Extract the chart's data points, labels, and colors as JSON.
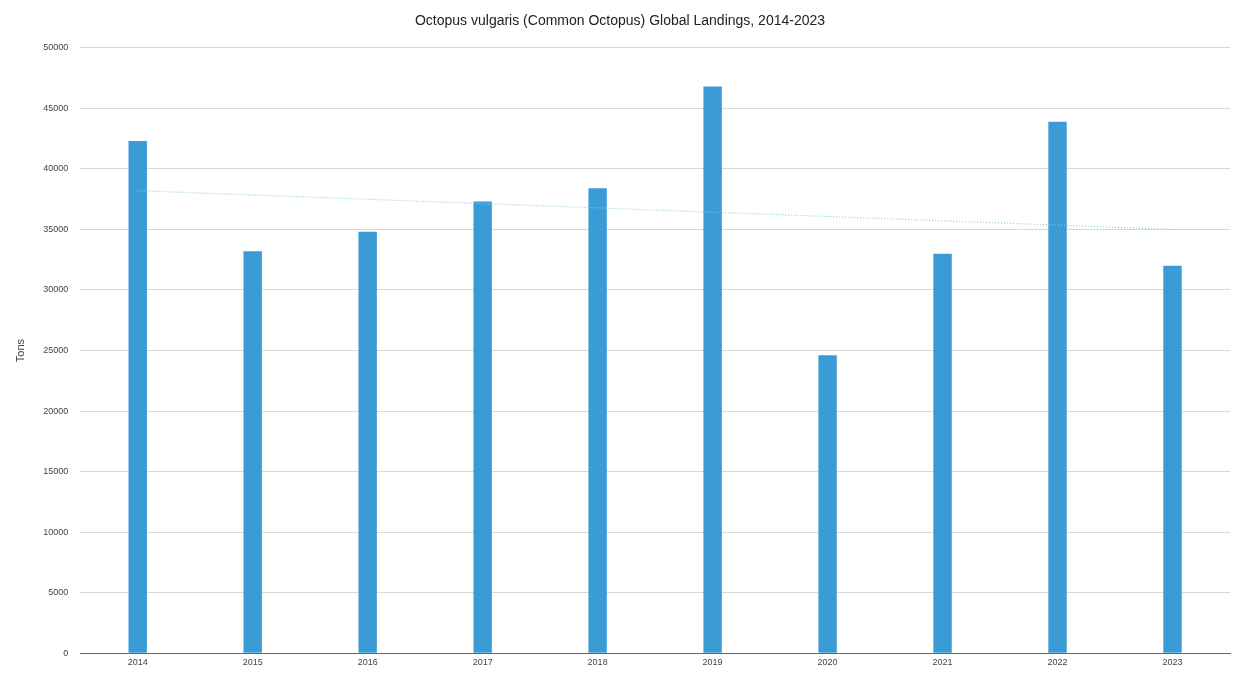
{
  "chart_data": {
    "type": "bar",
    "title": "Octopus vulgaris (Common Octopus) Global Landings, 2014-2023",
    "ylabel": "Tons",
    "categories": [
      "2014",
      "2015",
      "2016",
      "2017",
      "2018",
      "2019",
      "2020",
      "2021",
      "2022",
      "2023"
    ],
    "series": [
      {
        "color": "#3a9bd5",
        "values": [
          42300,
          33200,
          34800,
          37300,
          38400,
          46800,
          24600,
          33000,
          43900,
          32000
        ]
      },
      {
        "type": "line",
        "color": "#8ccbe8",
        "line_style": "dotted",
        "marker": "none",
        "values": [
          38200,
          null,
          null,
          null,
          null,
          null,
          null,
          null,
          null,
          35000
        ]
      }
    ],
    "ylim": [
      0,
      50000
    ],
    "yticks": [
      0,
      5000,
      10000,
      15000,
      20000,
      25000,
      30000,
      35000,
      40000,
      45000,
      50000
    ],
    "grid": "y",
    "legend": false
  }
}
